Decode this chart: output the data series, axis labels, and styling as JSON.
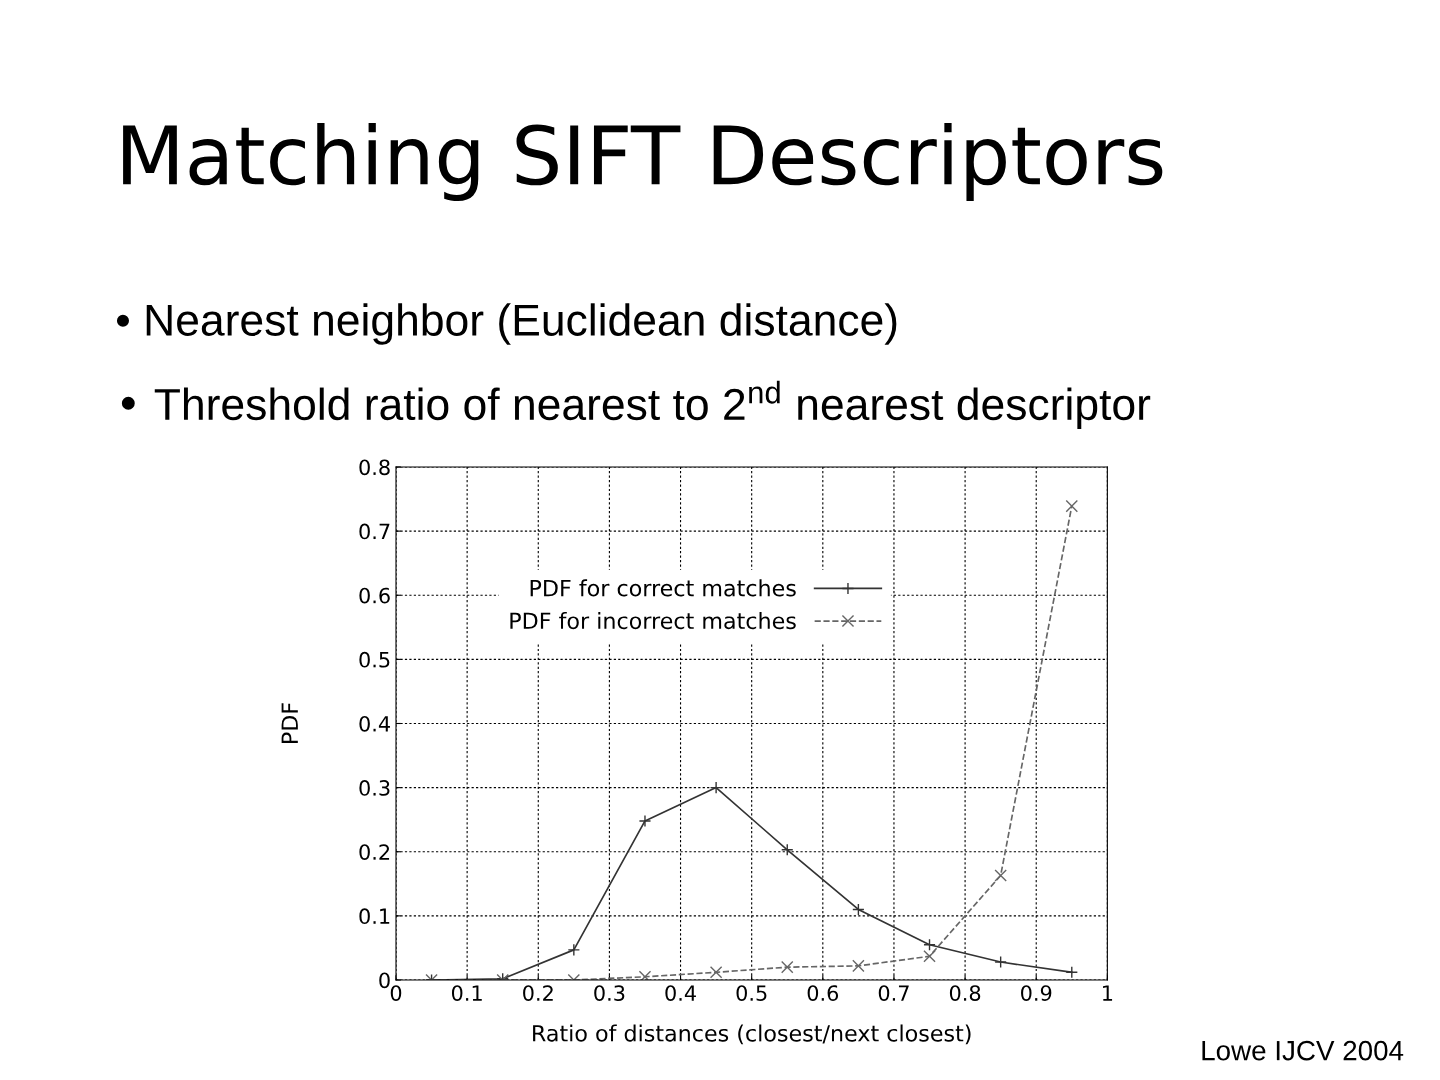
{
  "chart_data": {
    "type": "line",
    "title": "Matching SIFT Descriptors",
    "annotations": [
      "• Nearest neighbor (Euclidean distance)",
      "• Threshold ratio of nearest to 2$^{nd}$ nearest descriptor",
      "Lowe IJCV 2004"
    ],
    "xlabel": "Ratio of distances (closest/next closest)",
    "ylabel": "PDF",
    "x": [
      0.05,
      0.15,
      0.25,
      0.35,
      0.45,
      0.55,
      0.65,
      0.75,
      0.85,
      0.95
    ],
    "series": [
      {
        "name": "PDF for correct matches",
        "color": "#333333",
        "marker": "plus",
        "line_style": "solid",
        "values": [
          0,
          0.002,
          0.047,
          0.248,
          0.3,
          0.203,
          0.11,
          0.055,
          0.028,
          0.012
        ]
      },
      {
        "name": "PDF for incorrect matches",
        "color": "#666666",
        "marker": "cross",
        "line_style": "dashed",
        "values": [
          0,
          0,
          0,
          0.005,
          0.012,
          0.02,
          0.022,
          0.037,
          0.163,
          0.739
        ]
      }
    ],
    "xlim": [
      0,
      1
    ],
    "xticks": [
      0,
      0.1,
      0.2,
      0.3,
      0.4,
      0.5,
      0.6,
      0.7,
      0.8,
      0.9,
      1
    ],
    "ylim": [
      0,
      0.8
    ],
    "yticks": [
      0,
      0.1,
      0.2,
      0.3,
      0.4,
      0.5,
      0.6,
      0.7,
      0.8
    ],
    "grid": true,
    "legend": "top"
  }
}
